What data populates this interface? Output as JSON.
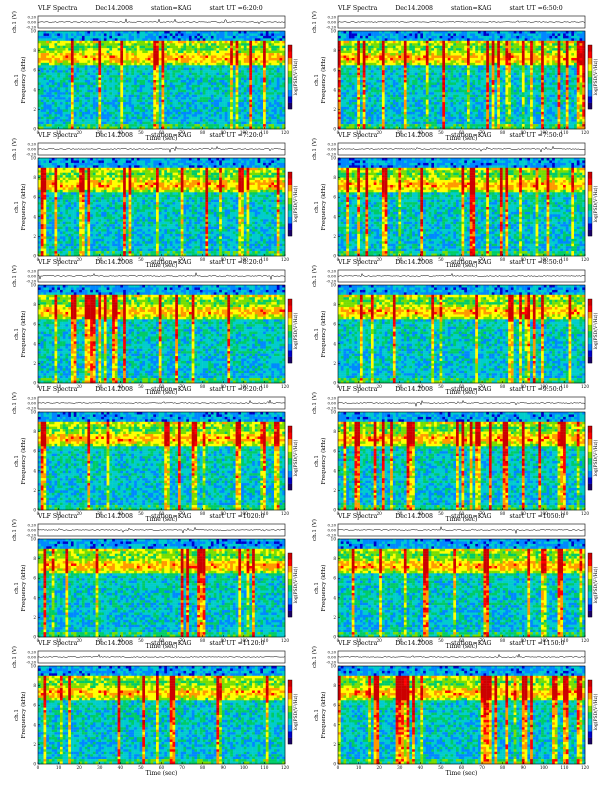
{
  "page": {
    "title_prefix": "VLF Spectra",
    "date": "Dec14.2008",
    "station": "station=KAG"
  },
  "colorbar": {
    "label": "log(PSD(V²/Hz))",
    "scale_colors": [
      "#1a0066",
      "#0000cc",
      "#0088ff",
      "#00cccc",
      "#00cc66",
      "#77dd00",
      "#ffff00",
      "#ff9900",
      "#ff0000",
      "#cc0000"
    ]
  },
  "chart_data": [
    {
      "type": "heatmap",
      "title": "VLF Spectra",
      "date": "Dec14.2008",
      "station": "station=KAG",
      "start_label": "start UT =6:20:0",
      "waveform_ylabel": "ch.1 (V)",
      "waveform_ticks": [
        "0.20",
        "0.00",
        "-0.20"
      ],
      "ylabel": "Frequency (kHz)",
      "channel": "ch.1",
      "xlabel": "Time (sec)",
      "xlim": [
        0,
        120
      ],
      "ylim": [
        0,
        10
      ],
      "xticks": [
        0,
        10,
        20,
        30,
        40,
        50,
        60,
        70,
        80,
        90,
        100,
        110,
        120
      ],
      "yticks": [
        0,
        2,
        4,
        6,
        8,
        10
      ],
      "colorbar_label": "log(PSD(V²/Hz))"
    },
    {
      "type": "heatmap",
      "title": "VLF Spectra",
      "date": "Dec14.2008",
      "station": "station=KAG",
      "start_label": "start UT =6:50:0",
      "waveform_ylabel": "ch.1 (V)",
      "waveform_ticks": [
        "0.20",
        "0.00",
        "-0.20"
      ],
      "ylabel": "Frequency (kHz)",
      "channel": "ch.1",
      "xlabel": "Time (sec)",
      "xlim": [
        0,
        120
      ],
      "ylim": [
        0,
        10
      ],
      "xticks": [
        0,
        10,
        20,
        30,
        40,
        50,
        60,
        70,
        80,
        90,
        100,
        110,
        120
      ],
      "yticks": [
        0,
        2,
        4,
        6,
        8,
        10
      ],
      "colorbar_label": "log(PSD(V²/Hz))"
    },
    {
      "type": "heatmap",
      "title": "VLF Spectra",
      "date": "Dec14.2008",
      "station": "station=KAG",
      "start_label": "start UT =7:20:0",
      "waveform_ylabel": "ch.1 (V)",
      "waveform_ticks": [
        "0.20",
        "0.00",
        "-0.20"
      ],
      "ylabel": "Frequency (kHz)",
      "channel": "ch.1",
      "xlabel": "Time (sec)",
      "xlim": [
        0,
        120
      ],
      "ylim": [
        0,
        10
      ],
      "xticks": [
        0,
        10,
        20,
        30,
        40,
        50,
        60,
        70,
        80,
        90,
        100,
        110,
        120
      ],
      "yticks": [
        0,
        2,
        4,
        6,
        8,
        10
      ],
      "colorbar_label": "log(PSD(V²/Hz))"
    },
    {
      "type": "heatmap",
      "title": "VLF Spectra",
      "date": "Dec14.2008",
      "station": "station=KAG",
      "start_label": "start UT =7:50:0",
      "waveform_ylabel": "ch.1 (V)",
      "waveform_ticks": [
        "0.20",
        "0.00",
        "-0.20"
      ],
      "ylabel": "Frequency (kHz)",
      "channel": "ch.1",
      "xlabel": "Time (sec)",
      "xlim": [
        0,
        120
      ],
      "ylim": [
        0,
        10
      ],
      "xticks": [
        0,
        10,
        20,
        30,
        40,
        50,
        60,
        70,
        80,
        90,
        100,
        110,
        120
      ],
      "yticks": [
        0,
        2,
        4,
        6,
        8,
        10
      ],
      "colorbar_label": "log(PSD(V²/Hz))"
    },
    {
      "type": "heatmap",
      "title": "VLF Spectra",
      "date": "Dec14.2008",
      "station": "station=KAG",
      "start_label": "start UT =8:20:0",
      "waveform_ylabel": "ch.1 (V)",
      "waveform_ticks": [
        "0.20",
        "0.00",
        "-0.20"
      ],
      "ylabel": "Frequency (kHz)",
      "channel": "ch.1",
      "xlabel": "Time (sec)",
      "xlim": [
        0,
        120
      ],
      "ylim": [
        0,
        10
      ],
      "xticks": [
        0,
        10,
        20,
        30,
        40,
        50,
        60,
        70,
        80,
        90,
        100,
        110,
        120
      ],
      "yticks": [
        0,
        2,
        4,
        6,
        8,
        10
      ],
      "colorbar_label": "log(PSD(V²/Hz))"
    },
    {
      "type": "heatmap",
      "title": "VLF Spectra",
      "date": "Dec14.2008",
      "station": "station=KAG",
      "start_label": "start UT =8:50:0",
      "waveform_ylabel": "ch.1 (V)",
      "waveform_ticks": [
        "0.20",
        "0.00",
        "-0.20"
      ],
      "ylabel": "Frequency (kHz)",
      "channel": "ch.1",
      "xlabel": "Time (sec)",
      "xlim": [
        0,
        120
      ],
      "ylim": [
        0,
        10
      ],
      "xticks": [
        0,
        10,
        20,
        30,
        40,
        50,
        60,
        70,
        80,
        90,
        100,
        110,
        120
      ],
      "yticks": [
        0,
        2,
        4,
        6,
        8,
        10
      ],
      "colorbar_label": "log(PSD(V²/Hz))"
    },
    {
      "type": "heatmap",
      "title": "VLF Spectra",
      "date": "Dec14.2008",
      "station": "station=KAG",
      "start_label": "start UT =9:20:0",
      "waveform_ylabel": "ch.1 (V)",
      "waveform_ticks": [
        "0.20",
        "0.00",
        "-0.20"
      ],
      "ylabel": "Frequency (kHz)",
      "channel": "ch.1",
      "xlabel": "Time (sec)",
      "xlim": [
        0,
        120
      ],
      "ylim": [
        0,
        10
      ],
      "xticks": [
        0,
        10,
        20,
        30,
        40,
        50,
        60,
        70,
        80,
        90,
        100,
        110,
        120
      ],
      "yticks": [
        0,
        2,
        4,
        6,
        8,
        10
      ],
      "colorbar_label": "log(PSD(V²/Hz))"
    },
    {
      "type": "heatmap",
      "title": "VLF Spectra",
      "date": "Dec14.2008",
      "station": "station=KAG",
      "start_label": "start UT =9:50:0",
      "waveform_ylabel": "ch.1 (V)",
      "waveform_ticks": [
        "0.20",
        "0.00",
        "-0.20"
      ],
      "ylabel": "Frequency (kHz)",
      "channel": "ch.1",
      "xlabel": "Time (sec)",
      "xlim": [
        0,
        120
      ],
      "ylim": [
        0,
        10
      ],
      "xticks": [
        0,
        10,
        20,
        30,
        40,
        50,
        60,
        70,
        80,
        90,
        100,
        110,
        120
      ],
      "yticks": [
        0,
        2,
        4,
        6,
        8,
        10
      ],
      "colorbar_label": "log(PSD(V²/Hz))"
    },
    {
      "type": "heatmap",
      "title": "VLF Spectra",
      "date": "Dec14.2008",
      "station": "station=KAG",
      "start_label": "start UT =1020:0",
      "waveform_ylabel": "ch.1 (V)",
      "waveform_ticks": [
        "0.20",
        "0.00",
        "-0.20"
      ],
      "ylabel": "Frequency (kHz)",
      "channel": "ch.1",
      "xlabel": "Time (sec)",
      "xlim": [
        0,
        120
      ],
      "ylim": [
        0,
        10
      ],
      "xticks": [
        0,
        10,
        20,
        30,
        40,
        50,
        60,
        70,
        80,
        90,
        100,
        110,
        120
      ],
      "yticks": [
        0,
        2,
        4,
        6,
        8,
        10
      ],
      "colorbar_label": "log(PSD(V²/Hz))"
    },
    {
      "type": "heatmap",
      "title": "VLF Spectra",
      "date": "Dec14.2008",
      "station": "station=KAG",
      "start_label": "start UT =1050:0",
      "waveform_ylabel": "ch.1 (V)",
      "waveform_ticks": [
        "0.20",
        "0.00",
        "-0.20"
      ],
      "ylabel": "Frequency (kHz)",
      "channel": "ch.1",
      "xlabel": "Time (sec)",
      "xlim": [
        0,
        120
      ],
      "ylim": [
        0,
        10
      ],
      "xticks": [
        0,
        10,
        20,
        30,
        40,
        50,
        60,
        70,
        80,
        90,
        100,
        110,
        120
      ],
      "yticks": [
        0,
        2,
        4,
        6,
        8,
        10
      ],
      "colorbar_label": "log(PSD(V²/Hz))"
    },
    {
      "type": "heatmap",
      "title": "VLF Spectra",
      "date": "Dec14.2008",
      "station": "station=KAG",
      "start_label": "start UT =1120:0",
      "waveform_ylabel": "ch.1 (V)",
      "waveform_ticks": [
        "0.20",
        "0.00",
        "-0.20"
      ],
      "ylabel": "Frequency (kHz)",
      "channel": "ch.1",
      "xlabel": "Time (sec)",
      "xlim": [
        0,
        120
      ],
      "ylim": [
        0,
        10
      ],
      "xticks": [
        0,
        10,
        20,
        30,
        40,
        50,
        60,
        70,
        80,
        90,
        100,
        110,
        120
      ],
      "yticks": [
        0,
        2,
        4,
        6,
        8,
        10
      ],
      "colorbar_label": "log(PSD(V²/Hz))"
    },
    {
      "type": "heatmap",
      "title": "VLF Spectra",
      "date": "Dec14.2008",
      "station": "station=KAG",
      "start_label": "start UT =1150:0",
      "waveform_ylabel": "ch.1 (V)",
      "waveform_ticks": [
        "0.20",
        "0.00",
        "-0.20"
      ],
      "ylabel": "Frequency (kHz)",
      "channel": "ch.1",
      "xlabel": "Time (sec)",
      "xlim": [
        0,
        120
      ],
      "ylim": [
        0,
        10
      ],
      "xticks": [
        0,
        10,
        20,
        30,
        40,
        50,
        60,
        70,
        80,
        90,
        100,
        110,
        120
      ],
      "yticks": [
        0,
        2,
        4,
        6,
        8,
        10
      ],
      "colorbar_label": "log(PSD(V²/Hz))"
    }
  ]
}
